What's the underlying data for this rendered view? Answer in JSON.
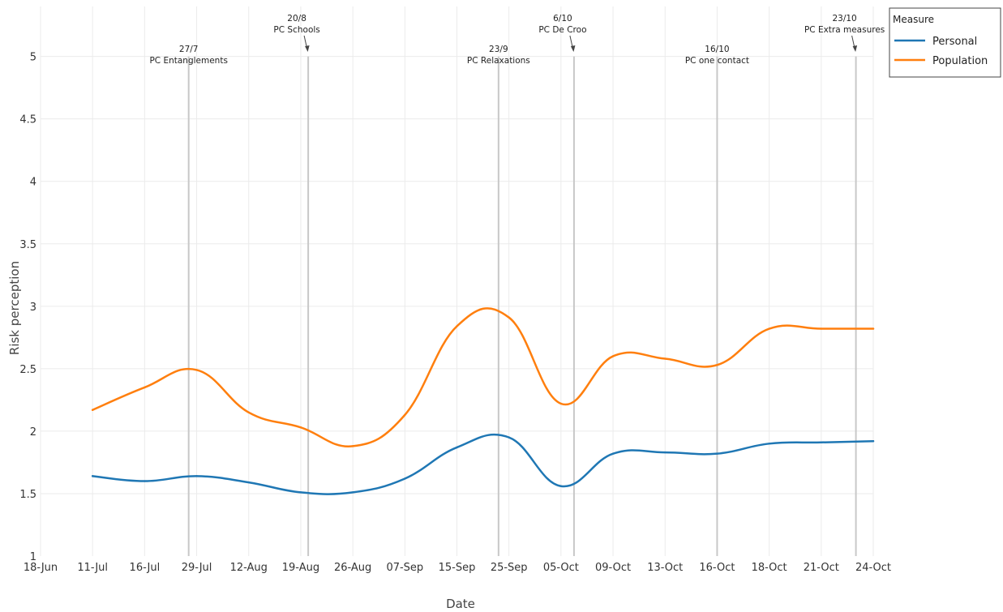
{
  "chart_data": {
    "type": "line",
    "xlabel": "Date",
    "ylabel": "Risk perception",
    "categories": [
      "18-Jun",
      "11-Jul",
      "16-Jul",
      "29-Jul",
      "12-Aug",
      "19-Aug",
      "26-Aug",
      "07-Sep",
      "15-Sep",
      "25-Sep",
      "05-Oct",
      "09-Oct",
      "13-Oct",
      "16-Oct",
      "18-Oct",
      "21-Oct",
      "24-Oct"
    ],
    "ylim": [
      1,
      5.4
    ],
    "yticks": [
      "1",
      "1.5",
      "2",
      "2.5",
      "3",
      "3.5",
      "4",
      "4.5",
      "5"
    ],
    "grid": true,
    "legend": {
      "title": "Measure",
      "position": "top-right"
    },
    "series": [
      {
        "name": "Personal",
        "color": "#1f77b4",
        "x": [
          "11-Jul",
          "16-Jul",
          "29-Jul",
          "12-Aug",
          "19-Aug",
          "26-Aug",
          "07-Sep",
          "15-Sep",
          "25-Sep",
          "05-Oct",
          "09-Oct",
          "13-Oct",
          "16-Oct",
          "18-Oct",
          "21-Oct",
          "24-Oct"
        ],
        "values": [
          1.64,
          1.6,
          1.64,
          1.59,
          1.51,
          1.51,
          1.62,
          1.87,
          1.95,
          1.56,
          1.82,
          1.83,
          1.82,
          1.9,
          1.91,
          1.92
        ]
      },
      {
        "name": "Population",
        "color": "#ff7f0e",
        "x": [
          "11-Jul",
          "16-Jul",
          "29-Jul",
          "12-Aug",
          "19-Aug",
          "26-Aug",
          "07-Sep",
          "15-Sep",
          "25-Sep",
          "05-Oct",
          "09-Oct",
          "13-Oct",
          "16-Oct",
          "18-Oct",
          "21-Oct",
          "24-Oct"
        ],
        "values": [
          2.17,
          2.35,
          2.49,
          2.15,
          2.03,
          1.88,
          2.13,
          2.84,
          2.91,
          2.22,
          2.6,
          2.58,
          2.53,
          2.82,
          2.82,
          2.82
        ]
      }
    ],
    "event_lines": [
      {
        "date": "27/7",
        "label": "PC Entanglements",
        "arrow": false
      },
      {
        "date": "20/8",
        "label": "PC Schools",
        "arrow": true
      },
      {
        "date": "23/9",
        "label": "PC Relaxations",
        "arrow": false
      },
      {
        "date": "6/10",
        "label": "PC De Croo",
        "arrow": true
      },
      {
        "date": "16/10",
        "label": "PC one contact",
        "arrow": false
      },
      {
        "date": "23/10",
        "label": "PC Extra measures",
        "arrow": true
      }
    ]
  }
}
